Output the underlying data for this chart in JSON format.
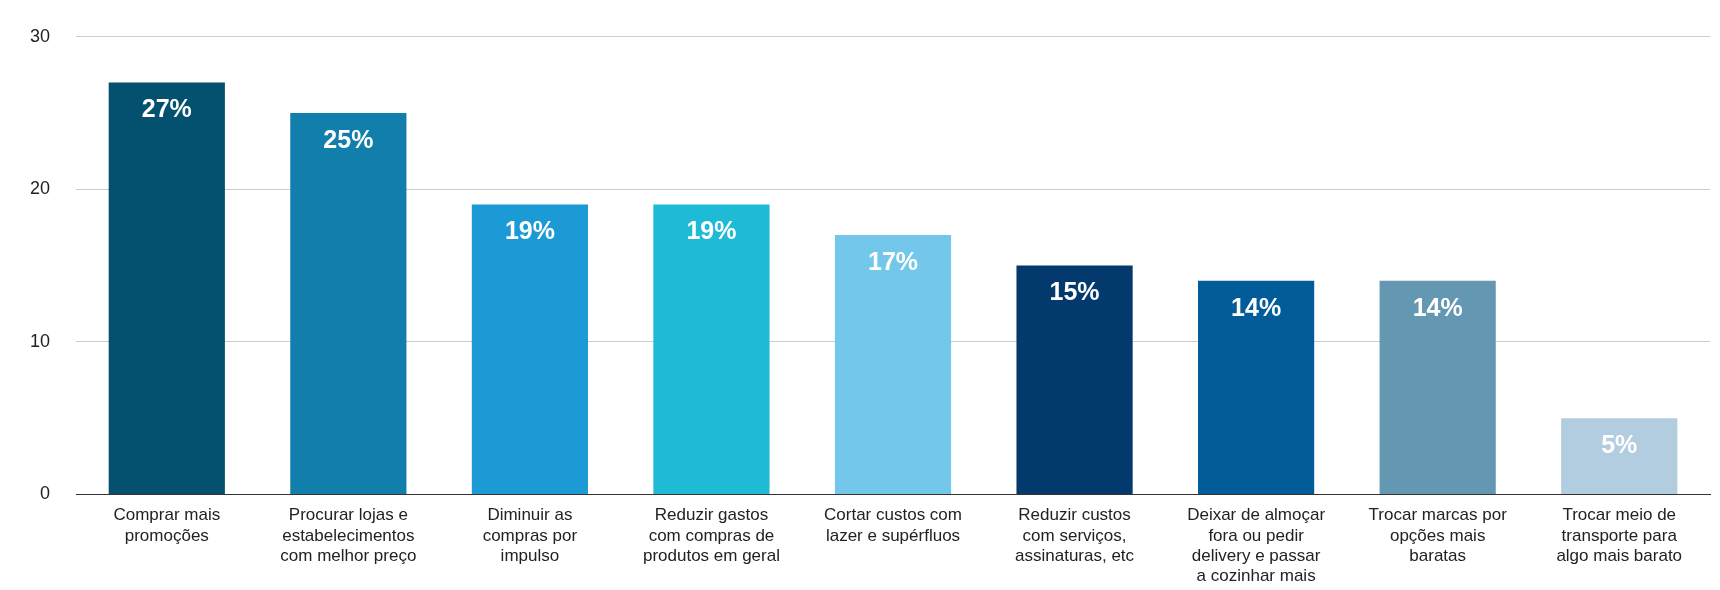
{
  "chart_data": {
    "type": "bar",
    "categories": [
      "Comprar mais promoções",
      "Procurar lojas e estabelecimentos com melhor preço",
      "Diminuir as compras por impulso",
      "Reduzir gastos com compras de produtos em geral",
      "Cortar custos com lazer e supérfluos",
      "Reduzir custos com serviços, assinaturas, etc",
      "Deixar de almoçar fora ou pedir delivery e passar a cozinhar mais",
      "Trocar marcas por opções mais baratas",
      "Trocar meio de transporte para algo mais barato"
    ],
    "values": [
      27,
      25,
      19,
      19,
      17,
      15,
      14,
      14,
      5
    ],
    "value_labels": [
      "27%",
      "25%",
      "19%",
      "19%",
      "17%",
      "15%",
      "14%",
      "14%",
      "5%"
    ],
    "colors": [
      "#03506f",
      "#127eab",
      "#1b9ad6",
      "#1fbad6",
      "#72c7ea",
      "#03396c",
      "#025c9a",
      "#6497b1",
      "#b3cde0"
    ],
    "ylim": [
      0,
      30
    ],
    "yticks": [
      0,
      10,
      20,
      30
    ],
    "grid": "y",
    "legend": false
  }
}
